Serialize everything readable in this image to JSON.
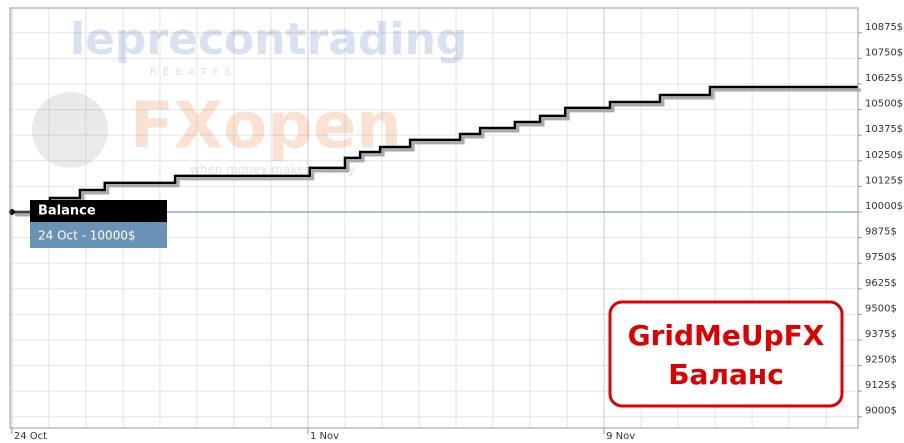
{
  "chart_data": {
    "type": "line",
    "drawstyle": "steps-post",
    "series": [
      {
        "name": "Balance",
        "color": "#000000",
        "x": [
          0,
          1.03,
          1.84,
          2.51,
          4.41,
          8.05,
          9.0,
          9.41,
          9.95,
          10.76,
          12.11,
          12.65,
          13.59,
          14.27,
          14.95,
          16.16,
          17.51,
          18.86,
          22.86
        ],
        "values": [
          10000,
          10068,
          10107,
          10142,
          10176,
          10215,
          10264,
          10293,
          10317,
          10352,
          10381,
          10410,
          10439,
          10469,
          10508,
          10537,
          10571,
          10610,
          10610
        ]
      }
    ],
    "xlim": [
      -0.05,
      22.86
    ],
    "xticks": [
      {
        "value": 0,
        "label": "24 Oct"
      },
      {
        "value": 8,
        "label": "1 Nov"
      },
      {
        "value": 16,
        "label": "9 Nov"
      }
    ],
    "ylim": [
      8945,
      10996
    ],
    "yticks": [
      {
        "value": 9000,
        "label": "9000$"
      },
      {
        "value": 9125,
        "label": "9125$"
      },
      {
        "value": 9250,
        "label": "9250$"
      },
      {
        "value": 9375,
        "label": "9375$"
      },
      {
        "value": 9500,
        "label": "9500$"
      },
      {
        "value": 9625,
        "label": "9625$"
      },
      {
        "value": 9750,
        "label": "9750$"
      },
      {
        "value": 9875,
        "label": "9875$"
      },
      {
        "value": 10000,
        "label": "10000$"
      },
      {
        "value": 10125,
        "label": "10125$"
      },
      {
        "value": 10250,
        "label": "10250$"
      },
      {
        "value": 10375,
        "label": "10375$"
      },
      {
        "value": 10500,
        "label": "10500$"
      },
      {
        "value": 10625,
        "label": "10625$"
      },
      {
        "value": 10750,
        "label": "10750$"
      },
      {
        "value": 10875,
        "label": "10875$"
      }
    ],
    "grid": true,
    "tooltip": {
      "title": "Balance",
      "text": "24 Oct - 10000$"
    },
    "watermark": {
      "brand1": "leprecontrading",
      "brand1_sub": "REBATES",
      "brand2": "FXopen",
      "brand2_sub": "when money makes money"
    },
    "badge": {
      "line1": "GridMeUpFX",
      "line2": "Баланс"
    }
  }
}
